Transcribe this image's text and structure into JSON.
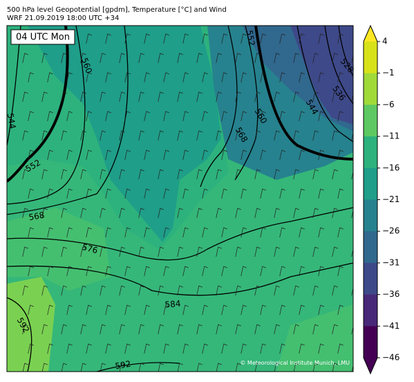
{
  "header": {
    "line1": "500 hPa level Geopotential [gpdm], Temperature [°C] and Wind",
    "line2": "WRF 21.09.2019 18:00 UTC +34"
  },
  "time_label": "04 UTC Mon",
  "credit": "© Meteorological Institute Munich, LMU",
  "contour_labels": [
    560,
    552,
    544,
    568,
    576,
    584,
    592,
    592,
    552,
    560,
    568,
    544,
    536,
    528
  ],
  "colorbar": {
    "ticks": [
      {
        "value": 4,
        "label": "4"
      },
      {
        "value": -1,
        "label": "−1"
      },
      {
        "value": -6,
        "label": "−6"
      },
      {
        "value": -11,
        "label": "−11"
      },
      {
        "value": -16,
        "label": "−16"
      },
      {
        "value": -21,
        "label": "−21"
      },
      {
        "value": -26,
        "label": "−26"
      },
      {
        "value": -31,
        "label": "−31"
      },
      {
        "value": -36,
        "label": "−36"
      },
      {
        "value": -41,
        "label": "−41"
      },
      {
        "value": -46,
        "label": "−46"
      }
    ],
    "colors": [
      "#d8e219",
      "#a0da39",
      "#5ec962",
      "#2db27d",
      "#1f9e89",
      "#26828e",
      "#31688e",
      "#3e4989",
      "#482878",
      "#440154"
    ],
    "extend_colors": [
      "#fde725",
      "#440154"
    ]
  }
}
